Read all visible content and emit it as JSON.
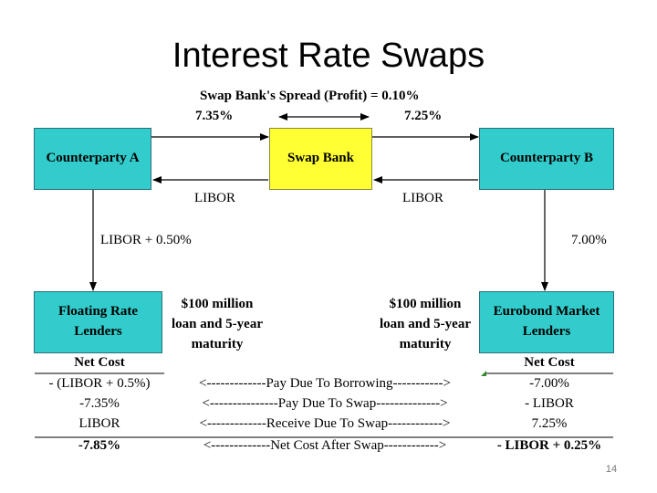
{
  "slide": {
    "title": "Interest Rate Swaps",
    "slide_number": "14"
  },
  "diagram": {
    "spread_label": "Swap Bank's Spread (Profit) = 0.10%",
    "rate_a_to_bank": "7.35%",
    "rate_bank_to_b": "7.25%",
    "libor_bank_to_a": "LIBOR",
    "libor_b_to_bank": "LIBOR",
    "a_to_floating": "LIBOR + 0.50%",
    "b_to_eurobond": "7.00%",
    "counterparty_a": "Counterparty A",
    "swap_bank": "Swap Bank",
    "counterparty_b": "Counterparty B",
    "floating_lenders": [
      "Floating Rate",
      "Lenders"
    ],
    "eurobond_lenders": [
      "Eurobond Market",
      "Lenders"
    ],
    "loan_a": [
      "$100 million",
      "loan and 5-year",
      "maturity"
    ],
    "loan_b": [
      "$100 million",
      "loan and 5-year",
      "maturity"
    ]
  },
  "net_cost": {
    "header_left": "Net Cost",
    "header_right": "Net Cost",
    "rows": [
      {
        "left": "- (LIBOR + 0.5%)",
        "middle": "<-------------Pay Due To Borrowing----------->",
        "right": "-7.00%"
      },
      {
        "left": "-7.35%",
        "middle": "<---------------Pay Due To Swap-------------->",
        "right": "- LIBOR"
      },
      {
        "left": "LIBOR",
        "middle": "<-------------Receive Due To Swap------------>",
        "right": "7.25%"
      },
      {
        "left": "-7.85%",
        "middle": "<-------------Net Cost After Swap------------>",
        "right": "- LIBOR + 0.25%"
      }
    ]
  },
  "colors": {
    "teal": "#33cccc",
    "yellow": "#ffff33",
    "accent_mark": "#2e8b2e"
  }
}
